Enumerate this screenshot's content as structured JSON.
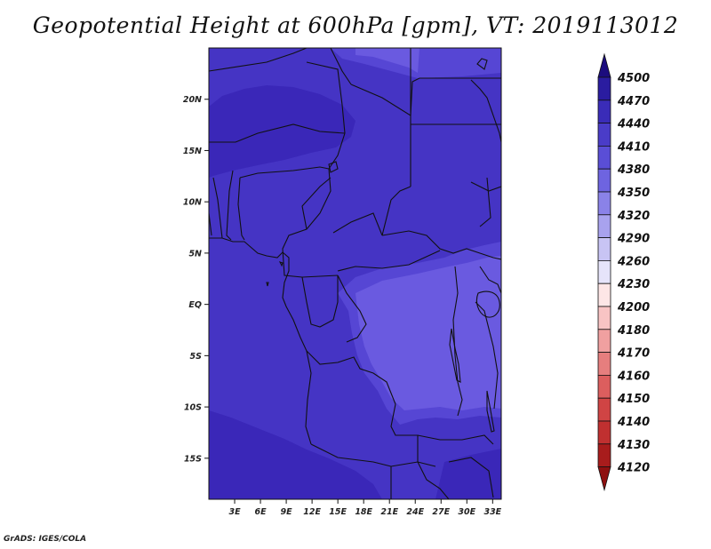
{
  "title": "Geopotential Height at 600hPa [gpm], VT: 2019113012",
  "credit": "GrADS: IGES/COLA",
  "map": {
    "lon_range": [
      0,
      34
    ],
    "lat_range": [
      -19,
      25
    ],
    "lat_ticks": [
      "20N",
      "15N",
      "10N",
      "5N",
      "EQ",
      "5S",
      "10S",
      "15S"
    ],
    "lon_ticks": [
      "3E",
      "6E",
      "9E",
      "12E",
      "15E",
      "18E",
      "21E",
      "24E",
      "27E",
      "30E",
      "33E"
    ],
    "field_colors": {
      "band_4440_4470": "#3a27b8",
      "band_4410_4440": "#4534c4",
      "band_4380_4410": "#5646d4",
      "band_4350_4380": "#6a5ae0"
    }
  },
  "colorbar": {
    "levels": [
      "4500",
      "4470",
      "4440",
      "4410",
      "4380",
      "4350",
      "4320",
      "4290",
      "4260",
      "4230",
      "4200",
      "4180",
      "4170",
      "4160",
      "4150",
      "4140",
      "4130",
      "4120"
    ],
    "colors": [
      "#1c0c7e",
      "#2a1ca0",
      "#3a2cb8",
      "#4a3cc8",
      "#5a4ed6",
      "#6e64e0",
      "#8a82e8",
      "#a8a2ee",
      "#c8c4f4",
      "#e6e4fa",
      "#fde6e6",
      "#f8c4c4",
      "#f0a0a0",
      "#e67e7e",
      "#dc5e5e",
      "#d04444",
      "#c03030",
      "#a81c1c",
      "#8e1010"
    ]
  }
}
